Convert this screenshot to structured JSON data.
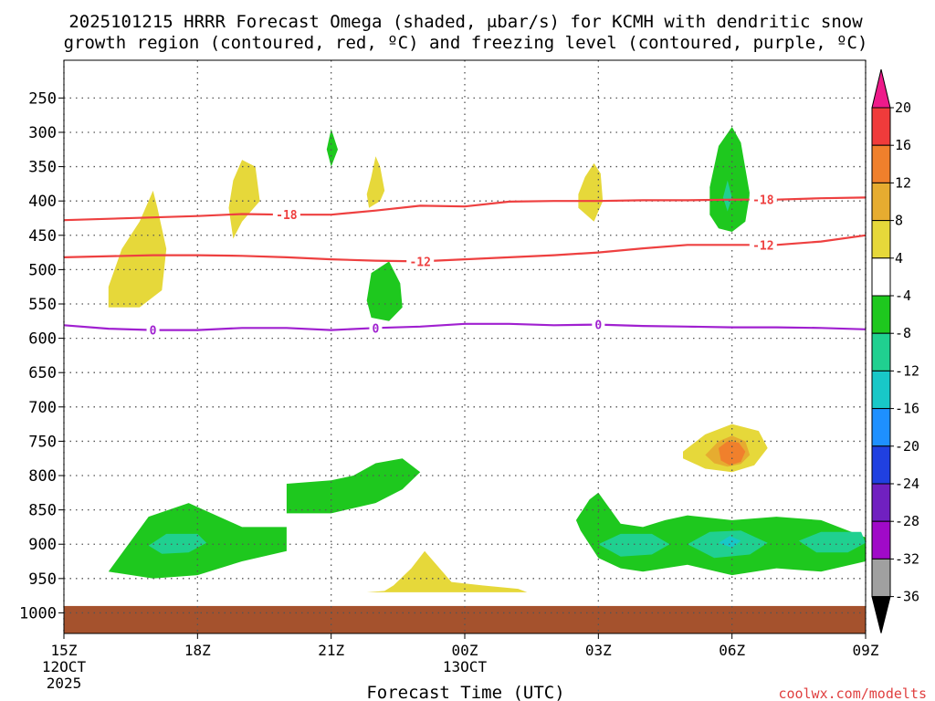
{
  "chart_data": {
    "type": "heatmap",
    "title_line1": "2025101215 HRRR Forecast Omega (shaded, μbar/s) for KCMH with dendritic snow",
    "title_line2": "growth region (contoured, red, ºC) and freezing level (contoured, purple, ºC)",
    "xlabel": "Forecast Time (UTC)",
    "ylabel": "",
    "watermark": "coolwx.com/modelts",
    "x_range_hours": [
      0,
      18
    ],
    "y_range_hpa": [
      195,
      1030
    ],
    "x_ticks": [
      {
        "hour": 0,
        "label": "15Z"
      },
      {
        "hour": 3,
        "label": "18Z"
      },
      {
        "hour": 6,
        "label": "21Z"
      },
      {
        "hour": 9,
        "label": "00Z"
      },
      {
        "hour": 12,
        "label": "03Z"
      },
      {
        "hour": 15,
        "label": "06Z"
      },
      {
        "hour": 18,
        "label": "09Z"
      }
    ],
    "date_labels": [
      {
        "hour": 0,
        "lines": [
          "12OCT",
          "2025"
        ]
      },
      {
        "hour": 9,
        "lines": [
          "13OCT"
        ]
      }
    ],
    "y_ticks": [
      250,
      300,
      350,
      400,
      450,
      500,
      550,
      600,
      650,
      700,
      750,
      800,
      850,
      900,
      950,
      1000
    ],
    "colorbar": {
      "levels": [
        "20",
        "16",
        "12",
        "8",
        "4",
        "-4",
        "-8",
        "-12",
        "-16",
        "-20",
        "-24",
        "-28",
        "-32",
        "-36"
      ],
      "colors": [
        "#ee1a8a",
        "#f03b3b",
        "#f0802c",
        "#e6ac30",
        "#e6d83a",
        "#ffffff",
        "#1ec81e",
        "#20d090",
        "#18c8c8",
        "#1e90ff",
        "#2040e0",
        "#7020c0",
        "#a00ac8",
        "#a0a0a0",
        "#000000"
      ]
    },
    "omega_regions": [
      {
        "bin": "4 to 8",
        "color": "#e6d83a",
        "points": [
          [
            1.0,
            555
          ],
          [
            1.7,
            555
          ],
          [
            2.2,
            530
          ],
          [
            2.3,
            470
          ],
          [
            2.1,
            410
          ],
          [
            2.0,
            385
          ],
          [
            1.7,
            430
          ],
          [
            1.3,
            470
          ],
          [
            1.0,
            525
          ]
        ]
      },
      {
        "bin": "4 to 8",
        "color": "#e6d83a",
        "points": [
          [
            3.8,
            455
          ],
          [
            4.0,
            430
          ],
          [
            4.4,
            400
          ],
          [
            4.3,
            350
          ],
          [
            4.0,
            340
          ],
          [
            3.8,
            370
          ],
          [
            3.7,
            410
          ]
        ]
      },
      {
        "bin": "4 to 8",
        "color": "#e6d83a",
        "points": [
          [
            6.85,
            410
          ],
          [
            7.1,
            400
          ],
          [
            7.2,
            385
          ],
          [
            7.1,
            350
          ],
          [
            7.0,
            335
          ],
          [
            6.9,
            365
          ],
          [
            6.8,
            390
          ]
        ]
      },
      {
        "bin": "4 to 8",
        "color": "#e6d83a",
        "points": [
          [
            11.55,
            410
          ],
          [
            11.9,
            430
          ],
          [
            12.1,
            400
          ],
          [
            12.05,
            360
          ],
          [
            11.9,
            345
          ],
          [
            11.7,
            365
          ],
          [
            11.55,
            390
          ]
        ]
      },
      {
        "bin": "4 to 8",
        "color": "#e6d83a",
        "points": [
          [
            6.8,
            970
          ],
          [
            7.2,
            968
          ],
          [
            7.4,
            960
          ],
          [
            7.8,
            935
          ],
          [
            8.1,
            910
          ],
          [
            8.7,
            955
          ],
          [
            9.4,
            960
          ],
          [
            10.2,
            965
          ],
          [
            10.4,
            970
          ]
        ]
      },
      {
        "bin": "4 to 8",
        "color": "#e6d83a",
        "points": [
          [
            13.9,
            765
          ],
          [
            14.4,
            740
          ],
          [
            15.0,
            725
          ],
          [
            15.6,
            735
          ],
          [
            15.8,
            760
          ],
          [
            15.5,
            785
          ],
          [
            15.0,
            795
          ],
          [
            14.4,
            790
          ],
          [
            13.9,
            775
          ]
        ]
      },
      {
        "bin": "8 to 12",
        "color": "#e6ac30",
        "points": [
          [
            14.4,
            770
          ],
          [
            14.7,
            750
          ],
          [
            15.0,
            742
          ],
          [
            15.3,
            750
          ],
          [
            15.4,
            770
          ],
          [
            15.2,
            783
          ],
          [
            14.9,
            787
          ],
          [
            14.6,
            782
          ]
        ]
      },
      {
        "bin": "12 to 16",
        "color": "#f0802c",
        "points": [
          [
            14.7,
            760
          ],
          [
            14.9,
            750
          ],
          [
            15.15,
            752
          ],
          [
            15.3,
            765
          ],
          [
            15.2,
            780
          ],
          [
            14.95,
            785
          ],
          [
            14.75,
            778
          ]
        ]
      },
      {
        "bin": "-4 to -8",
        "color": "#1ec81e",
        "points": [
          [
            6.0,
            350
          ],
          [
            6.15,
            325
          ],
          [
            6.0,
            295
          ],
          [
            5.9,
            325
          ]
        ]
      },
      {
        "bin": "-4 to -8",
        "color": "#1ec81e",
        "points": [
          [
            6.8,
            545
          ],
          [
            6.9,
            505
          ],
          [
            7.3,
            488
          ],
          [
            7.55,
            520
          ],
          [
            7.6,
            555
          ],
          [
            7.3,
            575
          ],
          [
            6.9,
            570
          ]
        ]
      },
      {
        "bin": "-4 to -8",
        "color": "#1ec81e",
        "points": [
          [
            14.5,
            420
          ],
          [
            14.7,
            440
          ],
          [
            15.0,
            445
          ],
          [
            15.3,
            430
          ],
          [
            15.4,
            390
          ],
          [
            15.2,
            315
          ],
          [
            15.0,
            292
          ],
          [
            14.7,
            320
          ],
          [
            14.5,
            380
          ]
        ]
      },
      {
        "bin": "-8 to -12",
        "color": "#20d090",
        "points": [
          [
            14.8,
            395
          ],
          [
            14.9,
            370
          ],
          [
            15.0,
            395
          ],
          [
            14.9,
            415
          ]
        ]
      },
      {
        "bin": "-4 to -8",
        "color": "#1ec81e",
        "points": [
          [
            1.0,
            940
          ],
          [
            1.9,
            860
          ],
          [
            2.8,
            840
          ],
          [
            4.0,
            875
          ],
          [
            5.0,
            875
          ],
          [
            5.0,
            910
          ],
          [
            4.0,
            925
          ],
          [
            3.0,
            945
          ],
          [
            2.0,
            950
          ]
        ]
      },
      {
        "bin": "-8 to -12",
        "color": "#20d090",
        "points": [
          [
            1.9,
            902
          ],
          [
            2.3,
            885
          ],
          [
            3.0,
            885
          ],
          [
            3.2,
            898
          ],
          [
            2.8,
            912
          ],
          [
            2.2,
            914
          ]
        ]
      },
      {
        "bin": "-4 to -8",
        "color": "#1ec81e",
        "points": [
          [
            5.0,
            855
          ],
          [
            5.0,
            812
          ],
          [
            6.0,
            807
          ],
          [
            6.5,
            800
          ],
          [
            7.0,
            782
          ],
          [
            7.6,
            775
          ],
          [
            8.0,
            795
          ],
          [
            7.6,
            820
          ],
          [
            7.0,
            840
          ],
          [
            6.0,
            855
          ]
        ]
      },
      {
        "bin": "-4 to -8",
        "color": "#1ec81e",
        "points": [
          [
            11.5,
            865
          ],
          [
            11.8,
            835
          ],
          [
            12.0,
            825
          ],
          [
            12.5,
            870
          ],
          [
            13.0,
            875
          ],
          [
            13.5,
            865
          ],
          [
            14.0,
            858
          ],
          [
            15.0,
            865
          ],
          [
            16.0,
            860
          ],
          [
            17.0,
            865
          ],
          [
            18.0,
            890
          ],
          [
            18.0,
            925
          ],
          [
            17.0,
            940
          ],
          [
            16.0,
            935
          ],
          [
            15.0,
            945
          ],
          [
            14.0,
            930
          ],
          [
            13.0,
            940
          ],
          [
            12.5,
            935
          ],
          [
            12.0,
            920
          ],
          [
            11.6,
            880
          ]
        ]
      },
      {
        "bin": "-8 to -12",
        "color": "#20d090",
        "points": [
          [
            12.0,
            900
          ],
          [
            12.5,
            885
          ],
          [
            13.2,
            885
          ],
          [
            13.6,
            900
          ],
          [
            13.2,
            915
          ],
          [
            12.5,
            918
          ]
        ]
      },
      {
        "bin": "-8 to -12",
        "color": "#20d090",
        "points": [
          [
            14.0,
            900
          ],
          [
            14.5,
            882
          ],
          [
            15.2,
            880
          ],
          [
            15.8,
            898
          ],
          [
            15.4,
            915
          ],
          [
            14.6,
            920
          ]
        ]
      },
      {
        "bin": "-12 to -16",
        "color": "#18c8c8",
        "points": [
          [
            14.7,
            898
          ],
          [
            14.95,
            888
          ],
          [
            15.2,
            895
          ],
          [
            15.0,
            905
          ]
        ]
      },
      {
        "bin": "-8 to -12",
        "color": "#20d090",
        "points": [
          [
            16.5,
            895
          ],
          [
            17.0,
            882
          ],
          [
            17.9,
            882
          ],
          [
            18.0,
            898
          ],
          [
            17.6,
            912
          ],
          [
            16.9,
            912
          ]
        ]
      }
    ],
    "temperature_contours": [
      {
        "value": -18,
        "label": "-18",
        "color": "#ee4040",
        "label_hours": [
          5.0,
          15.7
        ],
        "points": [
          [
            0,
            428
          ],
          [
            2,
            424
          ],
          [
            3,
            422
          ],
          [
            4,
            419
          ],
          [
            5,
            420
          ],
          [
            6,
            420
          ],
          [
            7,
            414
          ],
          [
            8,
            407
          ],
          [
            9,
            408
          ],
          [
            10,
            401
          ],
          [
            11,
            400
          ],
          [
            12,
            400
          ],
          [
            13,
            399
          ],
          [
            14,
            399
          ],
          [
            15,
            398
          ],
          [
            16,
            398
          ],
          [
            17,
            396
          ],
          [
            18,
            395
          ]
        ]
      },
      {
        "value": -12,
        "label": "-12",
        "color": "#ee4040",
        "label_hours": [
          8.0,
          15.7
        ],
        "points": [
          [
            0,
            482
          ],
          [
            2,
            479
          ],
          [
            3,
            479
          ],
          [
            4,
            480
          ],
          [
            5,
            482
          ],
          [
            6,
            485
          ],
          [
            7,
            487
          ],
          [
            8,
            488
          ],
          [
            9,
            485
          ],
          [
            10,
            482
          ],
          [
            11,
            479
          ],
          [
            12,
            475
          ],
          [
            13,
            469
          ],
          [
            14,
            464
          ],
          [
            15,
            464
          ],
          [
            16,
            464
          ],
          [
            17,
            459
          ],
          [
            18,
            450
          ]
        ]
      },
      {
        "value": 0,
        "label": "0",
        "color": "#a020d0",
        "label_hours": [
          2.0,
          7.0,
          12.0
        ],
        "points": [
          [
            0,
            581
          ],
          [
            1,
            586
          ],
          [
            2,
            588
          ],
          [
            3,
            588
          ],
          [
            4,
            585
          ],
          [
            5,
            585
          ],
          [
            6,
            588
          ],
          [
            7,
            585
          ],
          [
            8,
            583
          ],
          [
            9,
            579
          ],
          [
            10,
            579
          ],
          [
            11,
            581
          ],
          [
            12,
            580
          ],
          [
            13,
            582
          ],
          [
            14,
            583
          ],
          [
            15,
            584
          ],
          [
            16,
            584
          ],
          [
            17,
            585
          ],
          [
            18,
            587
          ]
        ]
      }
    ],
    "ground_level_hpa": 990,
    "ground_color": "#a5522d"
  }
}
